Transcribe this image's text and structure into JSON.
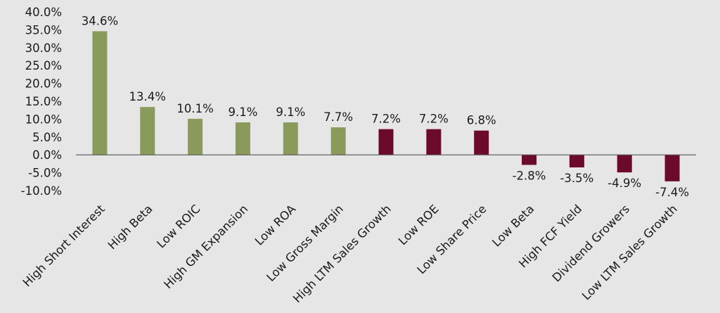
{
  "chart_data": {
    "type": "bar",
    "categories": [
      "High Short Interest",
      "High Beta",
      "Low ROIC",
      "High GM Expansion",
      "Low ROA",
      "Low Gross Margin",
      "High LTM Sales Growth",
      "Low ROE",
      "Low Share Price",
      "Low Beta",
      "High FCF Yield",
      "Dividend Growers",
      "Low LTM Sales Growth"
    ],
    "values": [
      34.6,
      13.4,
      10.1,
      9.1,
      9.1,
      7.7,
      7.2,
      7.2,
      6.8,
      -2.8,
      -3.5,
      -4.9,
      -7.4
    ],
    "data_labels": [
      "34.6%",
      "13.4%",
      "10.1%",
      "9.1%",
      "9.1%",
      "7.7%",
      "7.2%",
      "7.2%",
      "6.8%",
      "-2.8%",
      "-3.5%",
      "-4.9%",
      "-7.4%"
    ],
    "bar_colors": [
      "#8a9a5b",
      "#8a9a5b",
      "#8a9a5b",
      "#8a9a5b",
      "#8a9a5b",
      "#8a9a5b",
      "#6b0a2a",
      "#6b0a2a",
      "#6b0a2a",
      "#6b0a2a",
      "#6b0a2a",
      "#6b0a2a",
      "#6b0a2a"
    ],
    "ylim": [
      -10,
      40
    ],
    "yticks": [
      40,
      35,
      30,
      25,
      20,
      15,
      10,
      5,
      0,
      -5,
      -10
    ],
    "ytick_labels": [
      "40.0%",
      "35.0%",
      "30.0%",
      "25.0%",
      "20.0%",
      "15.0%",
      "10.0%",
      "5.0%",
      "0.0%",
      "-5.0%",
      "-10.0%"
    ],
    "title": "",
    "xlabel": "",
    "ylabel": "",
    "grid": false,
    "legend": false
  }
}
